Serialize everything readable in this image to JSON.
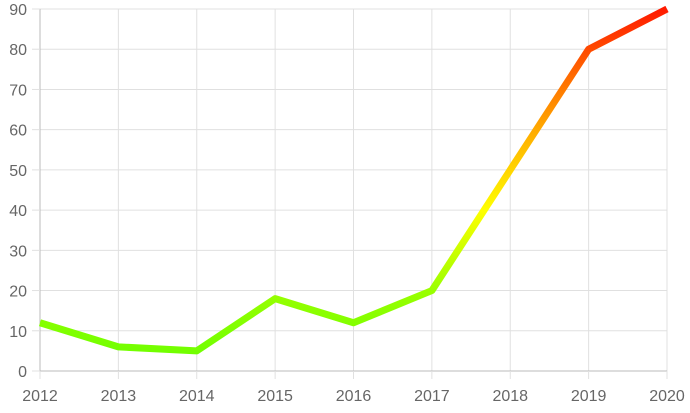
{
  "chart_data": {
    "type": "line",
    "x": [
      "2012",
      "2013",
      "2014",
      "2015",
      "2016",
      "2017",
      "2018",
      "2019",
      "2020"
    ],
    "series": [
      {
        "values": [
          12,
          6,
          5,
          18,
          12,
          20,
          50,
          80,
          90
        ]
      }
    ],
    "ylim": [
      0,
      90
    ],
    "yticks": [
      0,
      10,
      20,
      30,
      40,
      50,
      60,
      70,
      80,
      90
    ],
    "grid": true,
    "legend": "none",
    "line_gradient": {
      "direction": "bottom-to-top",
      "stops": [
        {
          "value": 0,
          "color": "#66ff00"
        },
        {
          "value": 20,
          "color": "#99ff00"
        },
        {
          "value": 40,
          "color": "#ffff00"
        },
        {
          "value": 60,
          "color": "#ffaa00"
        },
        {
          "value": 90,
          "color": "#ff1a00"
        }
      ]
    },
    "colors": {
      "grid": "#e0e0e0",
      "axis": "#bbbbbb",
      "tick_text": "#666666"
    }
  }
}
